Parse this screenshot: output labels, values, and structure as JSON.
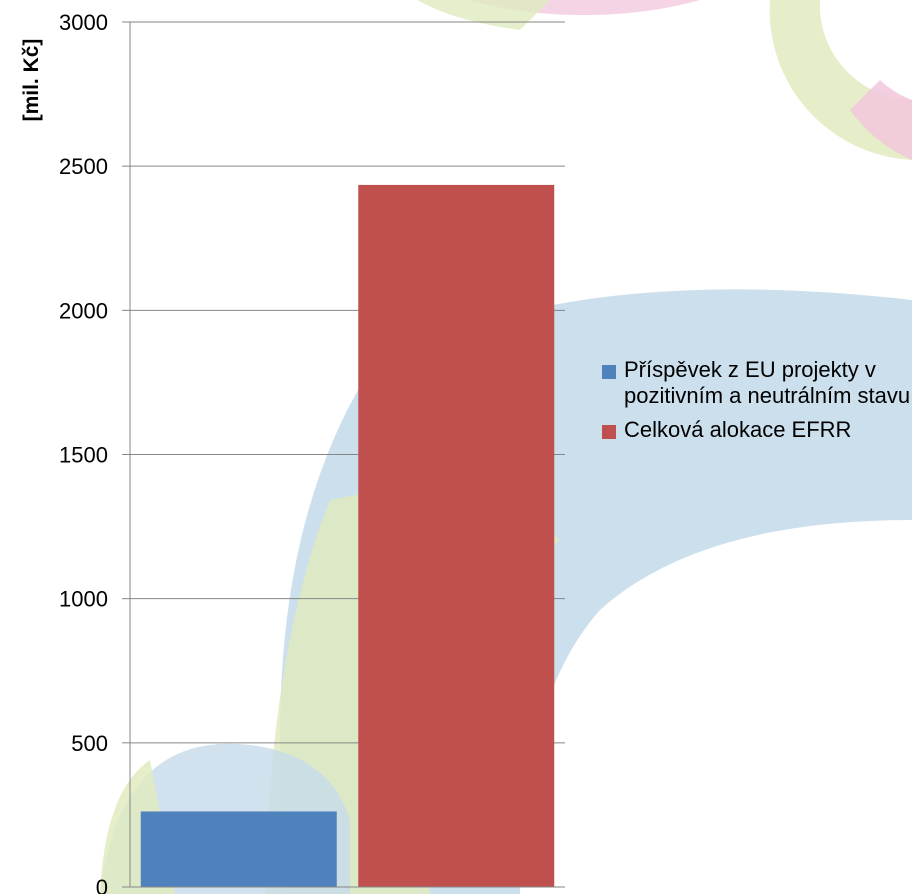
{
  "chart_data": {
    "type": "bar",
    "categories": [
      "Příspěvek z EU projekty v pozitivním a neutrálním stavu",
      "Celková alokace EFRR"
    ],
    "series": [
      {
        "name": "Příspěvek z EU projekty v pozitivním a neutrálním stavu",
        "values": [
          262,
          null
        ],
        "color": "#4f81bd"
      },
      {
        "name": "Celková alokace EFRR",
        "values": [
          null,
          2435
        ],
        "color": "#c0504d"
      }
    ],
    "title": "",
    "xlabel": "",
    "ylabel": "[mil. Kč]",
    "ylim": [
      0,
      3000
    ],
    "yticks": [
      "0",
      "500",
      "1000",
      "1500",
      "2000",
      "2500",
      "3000"
    ],
    "grid": true,
    "legend_position": "right"
  },
  "legend": {
    "item1": "Příspěvek z EU projekty v pozitivním a neutrálním stavu",
    "item2": "Celková alokace EFRR"
  }
}
